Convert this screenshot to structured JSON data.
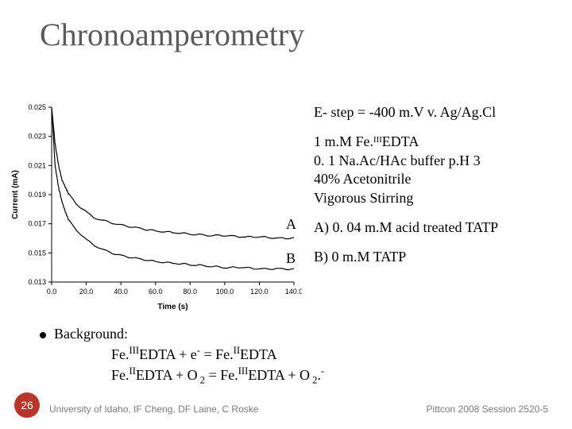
{
  "title": "Chronoamperometry",
  "text": {
    "e_step": "E- step = -400 m.V v. Ag/Ag.Cl",
    "cond1": "1 m.M   Fe.ᴵᴵᴵEDTA",
    "cond2": "0. 1 Na.Ac/HAc buffer p.H 3",
    "cond3": "40% Acetonitrile",
    "cond4": "Vigorous Stirring",
    "labelA": "A",
    "labelB": "B",
    "A_desc": "A) 0. 04 m.M acid treated TATP",
    "B_desc": "B) 0 m.M TATP"
  },
  "background": {
    "heading": "Background:",
    "line1_html": "Fe.<sup>III</sup>EDTA + e<sup>-</sup> = Fe.<sup>II</sup>EDTA",
    "line2_html": "Fe.<sup>II</sup>EDTA + O<sub> 2</sub> = Fe.<sup>III</sup>EDTA + O<sub> 2</sub>.<sup>-</sup>"
  },
  "footer": {
    "slide_number": "26",
    "left": "University of Idaho, IF Cheng, DF Laine, C Roske",
    "right": "Pittcon 2008 Session 2520-5"
  },
  "chart": {
    "type": "line",
    "xlabel": "Time (s)",
    "ylabel": "Current (mA)",
    "xlim": [
      0,
      140
    ],
    "ylim": [
      0.013,
      0.025
    ],
    "xticks": [
      0,
      20,
      40,
      60,
      80,
      100,
      120,
      140
    ],
    "xtick_labels": [
      "0.0",
      "20.0",
      "40.0",
      "60.0",
      "80.0",
      "100.0",
      "120.0",
      "140.0"
    ],
    "yticks": [
      0.013,
      0.015,
      0.017,
      0.019,
      0.021,
      0.023,
      0.025
    ],
    "ytick_labels": [
      "0.013",
      "0.015",
      "0.017",
      "0.019",
      "0.021",
      "0.023",
      "0.025"
    ],
    "axis_color": "#000000",
    "line_color": "#000000",
    "background_color": "#ffffff",
    "label_fontsize": 10,
    "tick_fontsize": 9,
    "line_width": 1.2,
    "seriesA": {
      "name": "A",
      "x": [
        0,
        2,
        4,
        6,
        8,
        10,
        15,
        20,
        25,
        30,
        40,
        50,
        60,
        70,
        80,
        90,
        100,
        110,
        120,
        130,
        140
      ],
      "y": [
        0.025,
        0.0225,
        0.021,
        0.02,
        0.0195,
        0.019,
        0.0183,
        0.0178,
        0.0174,
        0.0172,
        0.0169,
        0.0167,
        0.0165,
        0.0164,
        0.0163,
        0.0162,
        0.0162,
        0.0161,
        0.0161,
        0.016,
        0.016
      ]
    },
    "seriesB": {
      "name": "B",
      "x": [
        0,
        2,
        4,
        6,
        8,
        10,
        15,
        20,
        25,
        30,
        40,
        50,
        60,
        70,
        80,
        90,
        100,
        110,
        120,
        130,
        140
      ],
      "y": [
        0.025,
        0.021,
        0.0195,
        0.0185,
        0.0178,
        0.0172,
        0.0165,
        0.0159,
        0.0155,
        0.0152,
        0.0148,
        0.0146,
        0.0144,
        0.0143,
        0.0142,
        0.0141,
        0.014,
        0.014,
        0.0139,
        0.0139,
        0.0139
      ]
    }
  },
  "colors": {
    "title_color": "#5a5a5a",
    "slidenum_bg": "#b7352d",
    "footer_color": "#7a7a7a"
  }
}
